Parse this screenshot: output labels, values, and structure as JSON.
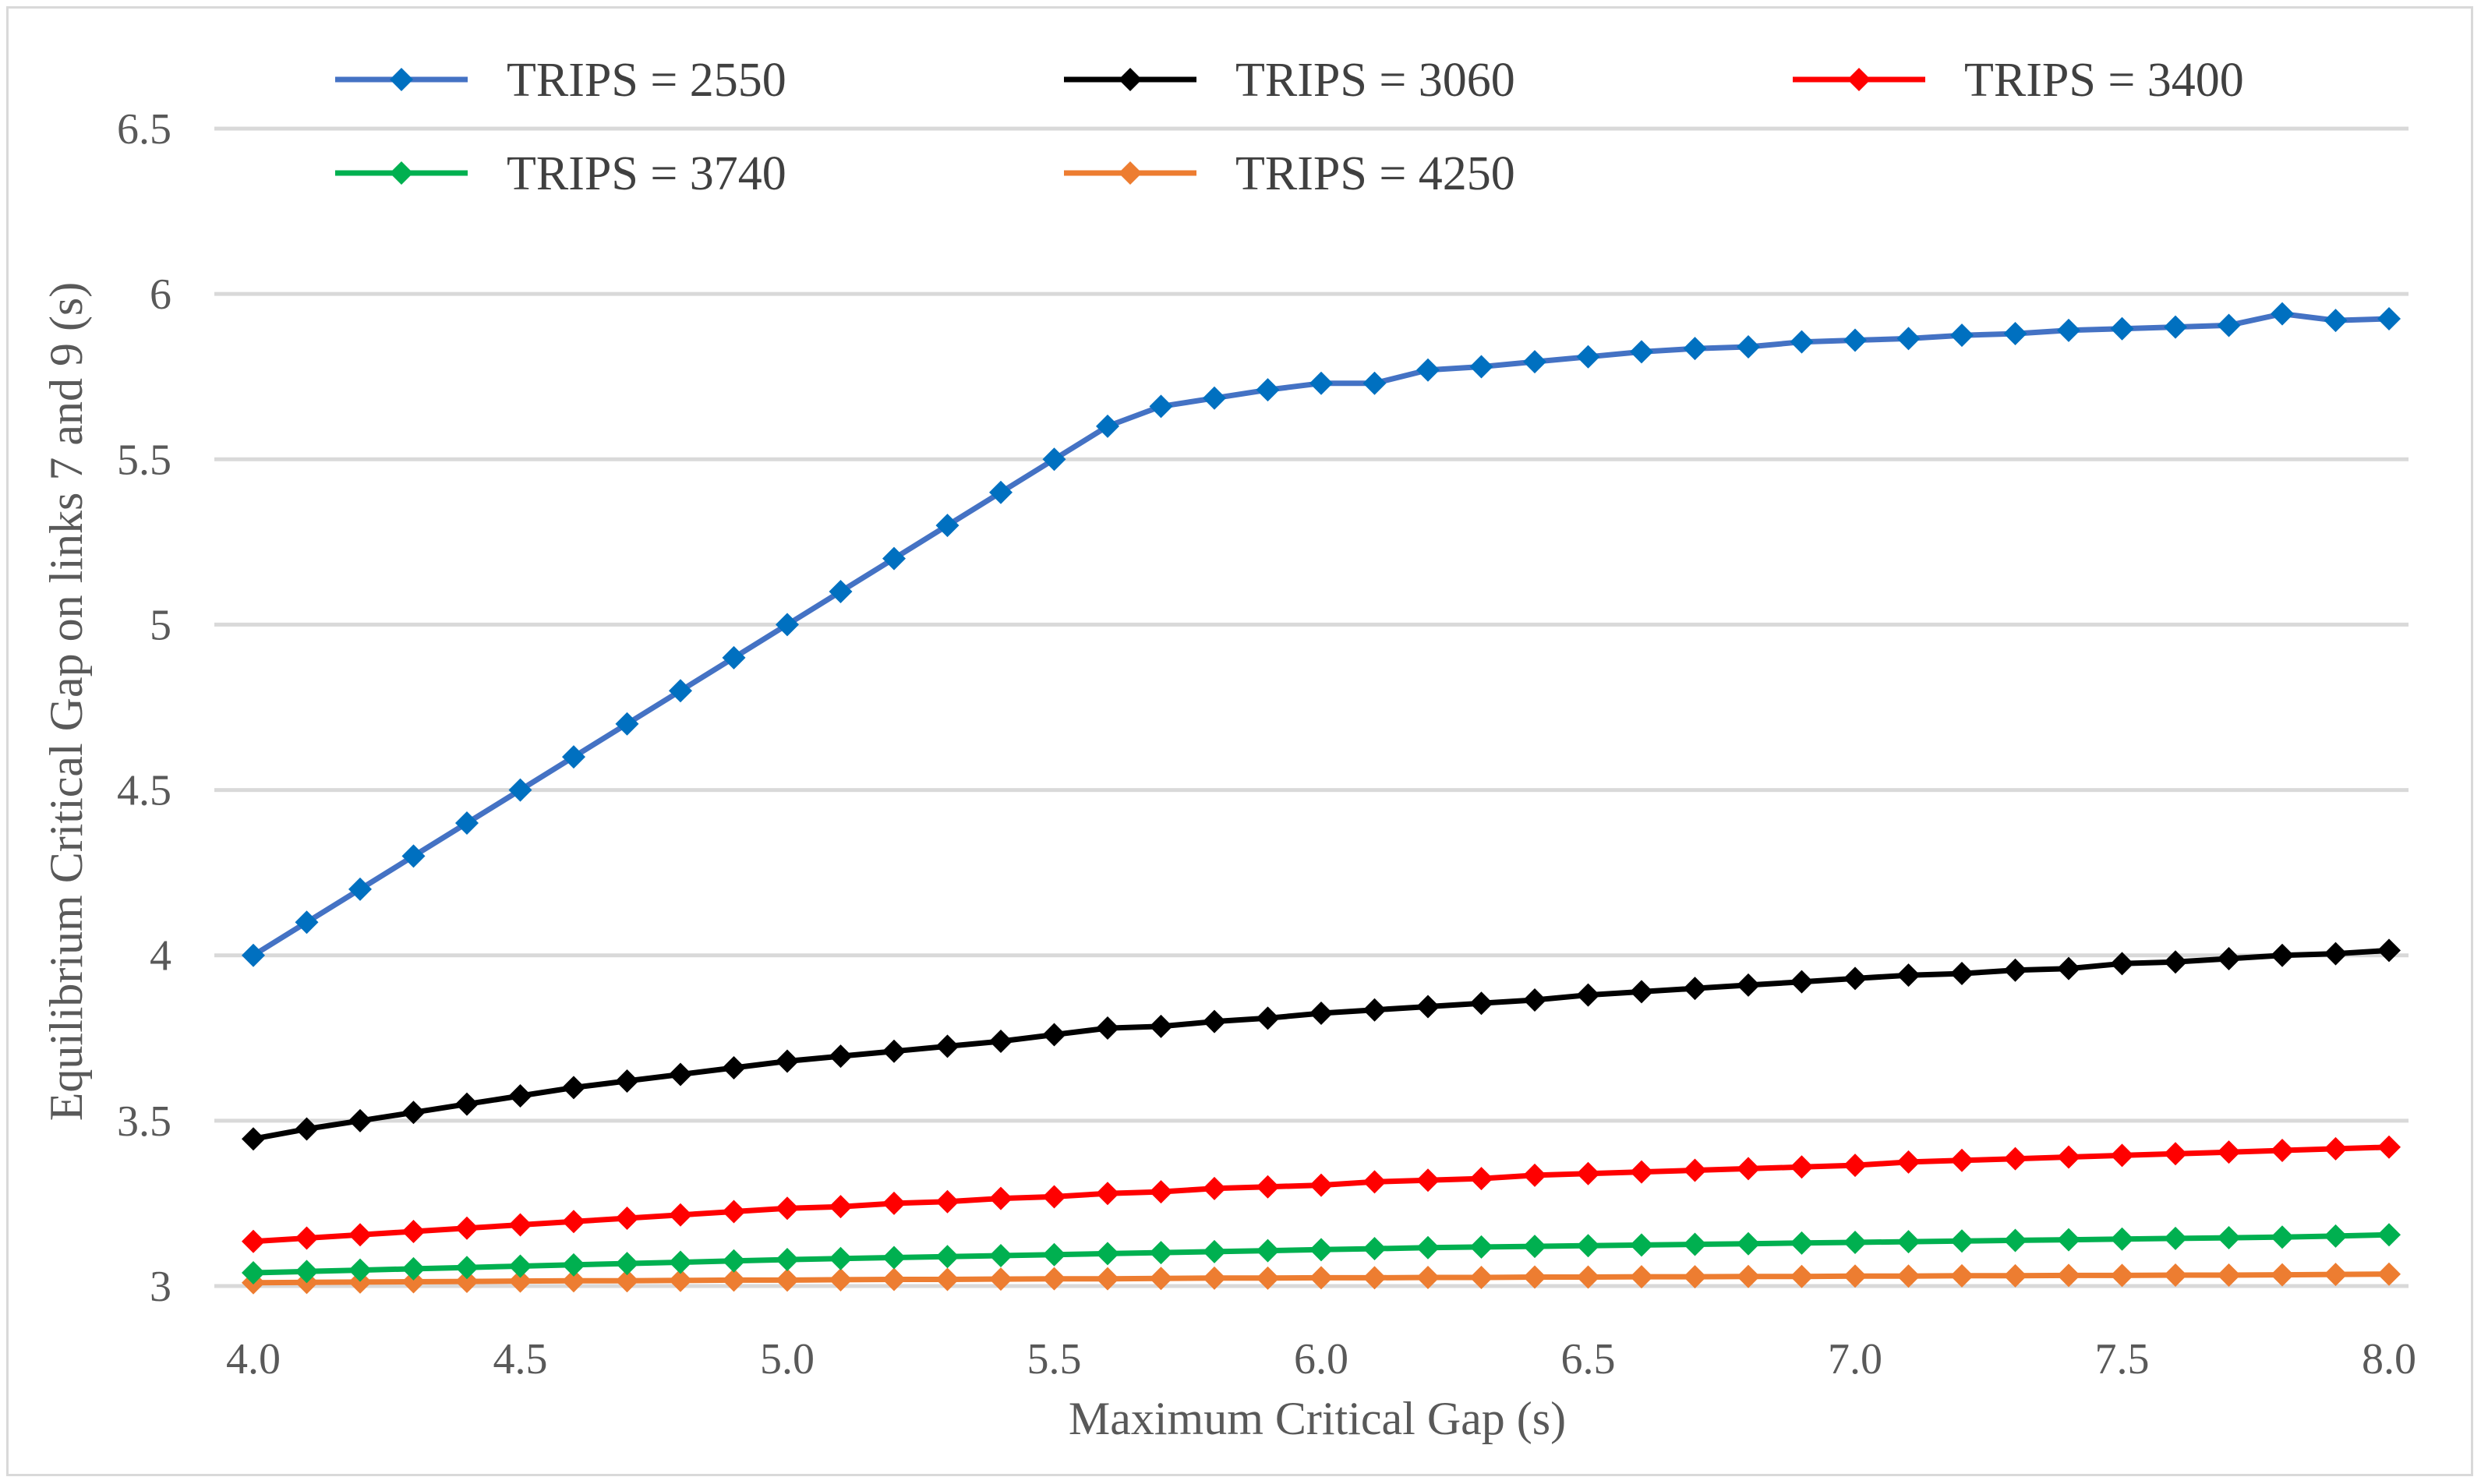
{
  "chart_data": {
    "type": "line",
    "title": "",
    "xlabel": "Maximum Critical Gap (s)",
    "ylabel": "Equilibrium Critical Gap on links 7 and 9 (s)",
    "xlim": [
      4.0,
      8.0
    ],
    "ylim": [
      3,
      6.5
    ],
    "grid": true,
    "legend_position": "top",
    "x_ticks": [
      "4.0",
      "4.5",
      "5.0",
      "5.5",
      "6.0",
      "6.5",
      "7.0",
      "7.5",
      "8.0"
    ],
    "y_ticks": [
      "3",
      "3.5",
      "4",
      "4.5",
      "5",
      "5.5",
      "6",
      "6.5"
    ],
    "x": [
      4.0,
      4.1,
      4.2,
      4.3,
      4.4,
      4.5,
      4.6,
      4.7,
      4.8,
      4.9,
      5.0,
      5.1,
      5.2,
      5.3,
      5.4,
      5.5,
      5.6,
      5.7,
      5.8,
      5.9,
      6.0,
      6.1,
      6.2,
      6.3,
      6.4,
      6.5,
      6.6,
      6.7,
      6.8,
      6.9,
      7.0,
      7.1,
      7.2,
      7.3,
      7.4,
      7.5,
      7.6,
      7.7,
      7.8,
      7.9,
      8.0
    ],
    "series": [
      {
        "name": "TRIPS = 2550",
        "color": "#4472c4",
        "marker_color": "#0070c0",
        "values": [
          4.0,
          4.1,
          4.2,
          4.3,
          4.4,
          4.5,
          4.6,
          4.7,
          4.8,
          4.9,
          5.0,
          5.1,
          5.2,
          5.3,
          5.4,
          5.5,
          5.6,
          5.66,
          5.685,
          5.71,
          5.73,
          5.73,
          5.77,
          5.78,
          5.795,
          5.81,
          5.825,
          5.835,
          5.84,
          5.855,
          5.86,
          5.865,
          5.875,
          5.88,
          5.89,
          5.895,
          5.9,
          5.905,
          5.94,
          5.92,
          5.925
        ]
      },
      {
        "name": "TRIPS = 3060",
        "color": "#000000",
        "marker_color": "#000000",
        "values": [
          3.445,
          3.475,
          3.5,
          3.525,
          3.55,
          3.575,
          3.6,
          3.62,
          3.64,
          3.66,
          3.68,
          3.695,
          3.71,
          3.725,
          3.74,
          3.76,
          3.78,
          3.785,
          3.8,
          3.81,
          3.825,
          3.835,
          3.845,
          3.855,
          3.865,
          3.88,
          3.89,
          3.9,
          3.91,
          3.92,
          3.93,
          3.94,
          3.945,
          3.955,
          3.96,
          3.975,
          3.98,
          3.99,
          4.0,
          4.005,
          4.015
        ]
      },
      {
        "name": "TRIPS = 3400",
        "color": "#ff0000",
        "marker_color": "#ff0000",
        "values": [
          3.135,
          3.145,
          3.155,
          3.165,
          3.175,
          3.185,
          3.195,
          3.205,
          3.215,
          3.225,
          3.235,
          3.24,
          3.25,
          3.255,
          3.265,
          3.27,
          3.28,
          3.285,
          3.295,
          3.3,
          3.305,
          3.315,
          3.32,
          3.325,
          3.335,
          3.34,
          3.345,
          3.35,
          3.355,
          3.36,
          3.365,
          3.375,
          3.38,
          3.385,
          3.39,
          3.395,
          3.4,
          3.405,
          3.41,
          3.415,
          3.42
        ]
      },
      {
        "name": "TRIPS = 3740",
        "color": "#00b050",
        "marker_color": "#00b050",
        "values": [
          3.04,
          3.044,
          3.048,
          3.052,
          3.056,
          3.06,
          3.064,
          3.068,
          3.072,
          3.076,
          3.08,
          3.083,
          3.086,
          3.089,
          3.092,
          3.095,
          3.098,
          3.101,
          3.104,
          3.107,
          3.11,
          3.113,
          3.116,
          3.118,
          3.12,
          3.122,
          3.124,
          3.126,
          3.128,
          3.13,
          3.132,
          3.134,
          3.136,
          3.138,
          3.14,
          3.142,
          3.144,
          3.146,
          3.148,
          3.151,
          3.155
        ]
      },
      {
        "name": "TRIPS = 4250",
        "color": "#ed7d31",
        "marker_color": "#ed7d31",
        "values": [
          3.01,
          3.011,
          3.012,
          3.013,
          3.014,
          3.015,
          3.016,
          3.016,
          3.017,
          3.018,
          3.018,
          3.019,
          3.02,
          3.02,
          3.021,
          3.022,
          3.022,
          3.023,
          3.024,
          3.024,
          3.025,
          3.025,
          3.026,
          3.026,
          3.027,
          3.027,
          3.028,
          3.028,
          3.029,
          3.029,
          3.03,
          3.03,
          3.031,
          3.031,
          3.032,
          3.032,
          3.033,
          3.033,
          3.034,
          3.035,
          3.036
        ]
      }
    ]
  }
}
